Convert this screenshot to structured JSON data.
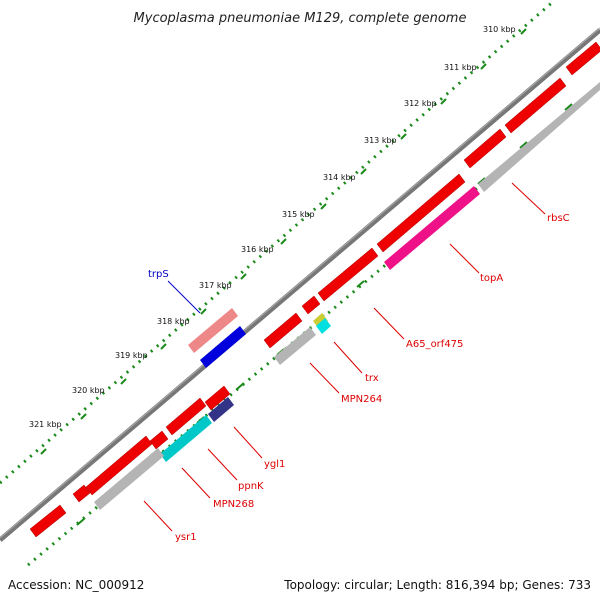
{
  "title": "Mycoplasma pneumoniae M129, complete genome",
  "footer": {
    "accession": "Accession: NC_000912",
    "summary": "Topology: circular; Length: 816,394 bp; Genes: 733"
  },
  "ticks": [
    "310 kbp",
    "311 kbp",
    "312 kbp",
    "313 kbp",
    "314 kbp",
    "315 kbp",
    "316 kbp",
    "317 kbp",
    "318 kbp",
    "319 kbp",
    "320 kbp",
    "321 kbp"
  ],
  "gene_labels": [
    {
      "id": "rbsC",
      "text": "rbsC",
      "color": "#dd0000"
    },
    {
      "id": "topA",
      "text": "topA",
      "color": "#dd0000"
    },
    {
      "id": "A65_orf475",
      "text": "A65_orf475",
      "color": "#dd0000"
    },
    {
      "id": "trx",
      "text": "trx",
      "color": "#dd0000"
    },
    {
      "id": "MPN264",
      "text": "MPN264",
      "color": "#dd0000"
    },
    {
      "id": "ygl1",
      "text": "ygl1",
      "color": "#dd0000"
    },
    {
      "id": "ppnK",
      "text": "ppnK",
      "color": "#dd0000"
    },
    {
      "id": "MPN268",
      "text": "MPN268",
      "color": "#dd0000"
    },
    {
      "id": "ysr1",
      "text": "ysr1",
      "color": "#dd0000"
    },
    {
      "id": "trpS",
      "text": "trpS",
      "color": "#0000cc"
    }
  ],
  "colors": {
    "cds": "#ee0000",
    "gray_feature": "#b4b4b4",
    "backbone": "#7a7a7a",
    "ruler_dot": "#1a8a1a",
    "topA": "#ee1188",
    "ppnK": "#00c8c8",
    "ygl1": "#333388",
    "trx": "#00e0e0",
    "trpS_rna": "#ee8888",
    "trpS": "#0000dd"
  }
}
